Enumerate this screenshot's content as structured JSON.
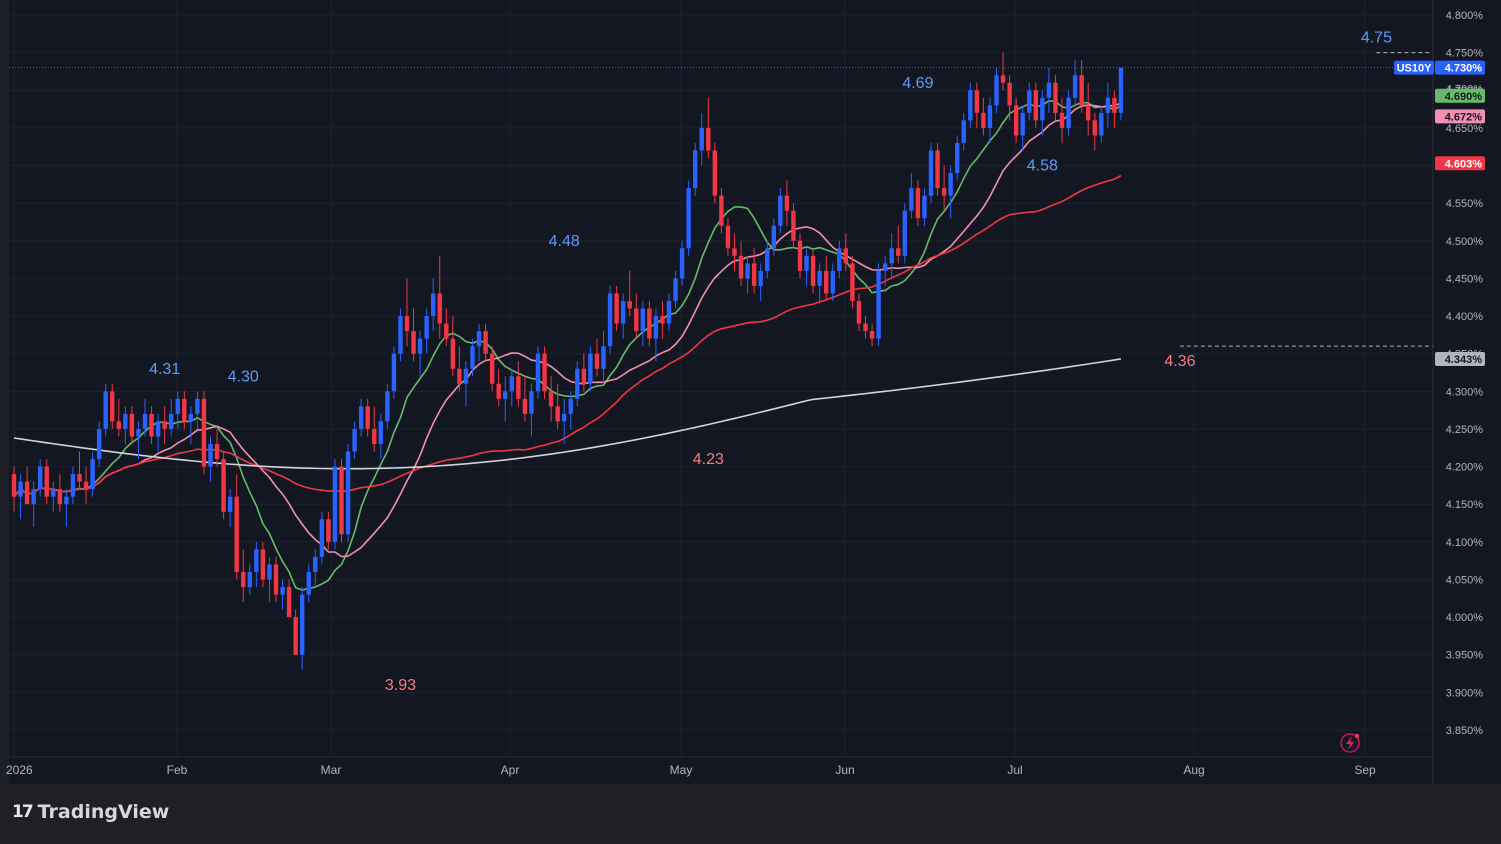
{
  "brand": {
    "logo_text": "17",
    "name": "TradingView"
  },
  "symbol": "US10Y",
  "colors": {
    "background": "#131722",
    "up": "#2962ff",
    "down": "#f23645",
    "ma_fast": "#66bb6a",
    "ma_mid": "#f48fb1",
    "ma_slow": "#f23645",
    "ma_long": "#d1d4dc"
  },
  "chart_data": {
    "type": "candlestick",
    "x_labels": [
      "2026",
      "Feb",
      "Mar",
      "Apr",
      "May",
      "Jun",
      "Jul",
      "Aug",
      "Sep"
    ],
    "y_tick_labels": [
      "4.800%",
      "4.750%",
      "4.700%",
      "4.650%",
      "4.600%",
      "4.550%",
      "4.500%",
      "4.450%",
      "4.400%",
      "4.350%",
      "4.300%",
      "4.250%",
      "4.200%",
      "4.150%",
      "4.100%",
      "4.050%",
      "4.000%",
      "3.950%",
      "3.900%",
      "3.850%"
    ],
    "y_ticks": [
      4.8,
      4.75,
      4.7,
      4.65,
      4.6,
      4.55,
      4.5,
      4.45,
      4.4,
      4.35,
      4.3,
      4.25,
      4.2,
      4.15,
      4.1,
      4.05,
      4.0,
      3.95,
      3.9,
      3.85
    ],
    "ylim": [
      3.83,
      4.82
    ],
    "last_price": {
      "value": 4.73,
      "label": "4.730%"
    },
    "price_badges": [
      {
        "series": "ma_fast",
        "value": 4.69,
        "label": "4.690%"
      },
      {
        "series": "ma_mid",
        "value": 4.672,
        "label": "4.672%"
      },
      {
        "series": "ma_slow",
        "value": 4.603,
        "label": "4.603%"
      },
      {
        "series": "ma_long",
        "value": 4.343,
        "label": "4.343%"
      }
    ],
    "hidden_badge_label": "4.700%",
    "extreme_labels": [
      {
        "label": "4.31",
        "value": 4.31,
        "kind": "high",
        "day": 23
      },
      {
        "label": "4.30",
        "value": 4.3,
        "kind": "high",
        "day": 35
      },
      {
        "label": "3.93",
        "value": 3.93,
        "kind": "low",
        "day": 59
      },
      {
        "label": "4.48",
        "value": 4.48,
        "kind": "high",
        "day": 84
      },
      {
        "label": "4.23",
        "value": 4.23,
        "kind": "low",
        "day": 106
      },
      {
        "label": "4.69",
        "value": 4.69,
        "kind": "high",
        "day": 138
      },
      {
        "label": "4.58",
        "value": 4.58,
        "kind": "high",
        "day": 157
      },
      {
        "label": "4.36",
        "value": 4.36,
        "kind": "low",
        "day": 178
      },
      {
        "label": "4.75",
        "value": 4.75,
        "kind": "high",
        "day": 208
      }
    ],
    "candles": [
      [
        4.19,
        4.2,
        4.14,
        4.16
      ],
      [
        4.16,
        4.19,
        4.13,
        4.18
      ],
      [
        4.18,
        4.2,
        4.15,
        4.15
      ],
      [
        4.15,
        4.18,
        4.12,
        4.17
      ],
      [
        4.17,
        4.21,
        4.16,
        4.2
      ],
      [
        4.2,
        4.21,
        4.15,
        4.16
      ],
      [
        4.16,
        4.18,
        4.14,
        4.17
      ],
      [
        4.17,
        4.19,
        4.14,
        4.15
      ],
      [
        4.15,
        4.17,
        4.12,
        4.16
      ],
      [
        4.16,
        4.2,
        4.15,
        4.19
      ],
      [
        4.19,
        4.22,
        4.17,
        4.18
      ],
      [
        4.18,
        4.2,
        4.15,
        4.17
      ],
      [
        4.17,
        4.22,
        4.16,
        4.21
      ],
      [
        4.21,
        4.26,
        4.2,
        4.25
      ],
      [
        4.25,
        4.31,
        4.24,
        4.3
      ],
      [
        4.3,
        4.31,
        4.25,
        4.26
      ],
      [
        4.26,
        4.29,
        4.24,
        4.25
      ],
      [
        4.25,
        4.28,
        4.23,
        4.27
      ],
      [
        4.27,
        4.28,
        4.23,
        4.24
      ],
      [
        4.24,
        4.26,
        4.21,
        4.25
      ],
      [
        4.25,
        4.29,
        4.24,
        4.27
      ],
      [
        4.27,
        4.28,
        4.23,
        4.24
      ],
      [
        4.24,
        4.27,
        4.22,
        4.26
      ],
      [
        4.26,
        4.28,
        4.23,
        4.25
      ],
      [
        4.25,
        4.29,
        4.24,
        4.27
      ],
      [
        4.27,
        4.3,
        4.25,
        4.29
      ],
      [
        4.29,
        4.3,
        4.25,
        4.26
      ],
      [
        4.26,
        4.28,
        4.23,
        4.27
      ],
      [
        4.27,
        4.3,
        4.25,
        4.29
      ],
      [
        4.29,
        4.3,
        4.19,
        4.2
      ],
      [
        4.2,
        4.24,
        4.18,
        4.23
      ],
      [
        4.23,
        4.25,
        4.2,
        4.21
      ],
      [
        4.21,
        4.22,
        4.13,
        4.14
      ],
      [
        4.14,
        4.17,
        4.12,
        4.16
      ],
      [
        4.16,
        4.19,
        4.05,
        4.06
      ],
      [
        4.06,
        4.09,
        4.02,
        4.04
      ],
      [
        4.04,
        4.07,
        4.03,
        4.06
      ],
      [
        4.06,
        4.1,
        4.04,
        4.09
      ],
      [
        4.09,
        4.1,
        4.04,
        4.05
      ],
      [
        4.05,
        4.08,
        4.02,
        4.07
      ],
      [
        4.07,
        4.08,
        4.02,
        4.03
      ],
      [
        4.03,
        4.05,
        4.01,
        4.04
      ],
      [
        4.04,
        4.05,
        4.0,
        4.0
      ],
      [
        4.0,
        4.01,
        3.95,
        3.95
      ],
      [
        3.95,
        4.04,
        3.93,
        4.03
      ],
      [
        4.03,
        4.07,
        4.02,
        4.06
      ],
      [
        4.06,
        4.09,
        4.04,
        4.08
      ],
      [
        4.08,
        4.14,
        4.07,
        4.13
      ],
      [
        4.13,
        4.14,
        4.09,
        4.1
      ],
      [
        4.1,
        4.21,
        4.09,
        4.2
      ],
      [
        4.2,
        4.21,
        4.1,
        4.11
      ],
      [
        4.11,
        4.23,
        4.1,
        4.22
      ],
      [
        4.22,
        4.26,
        4.21,
        4.25
      ],
      [
        4.25,
        4.29,
        4.24,
        4.28
      ],
      [
        4.28,
        4.29,
        4.24,
        4.25
      ],
      [
        4.25,
        4.28,
        4.22,
        4.23
      ],
      [
        4.23,
        4.27,
        4.21,
        4.26
      ],
      [
        4.26,
        4.31,
        4.25,
        4.3
      ],
      [
        4.3,
        4.36,
        4.29,
        4.35
      ],
      [
        4.35,
        4.41,
        4.34,
        4.4
      ],
      [
        4.4,
        4.45,
        4.36,
        4.38
      ],
      [
        4.38,
        4.41,
        4.34,
        4.35
      ],
      [
        4.35,
        4.38,
        4.32,
        4.37
      ],
      [
        4.37,
        4.41,
        4.35,
        4.4
      ],
      [
        4.4,
        4.45,
        4.38,
        4.43
      ],
      [
        4.43,
        4.48,
        4.37,
        4.39
      ],
      [
        4.39,
        4.41,
        4.36,
        4.37
      ],
      [
        4.37,
        4.4,
        4.32,
        4.33
      ],
      [
        4.33,
        4.36,
        4.3,
        4.31
      ],
      [
        4.31,
        4.34,
        4.28,
        4.33
      ],
      [
        4.33,
        4.37,
        4.32,
        4.36
      ],
      [
        4.36,
        4.39,
        4.34,
        4.38
      ],
      [
        4.38,
        4.39,
        4.34,
        4.35
      ],
      [
        4.35,
        4.36,
        4.3,
        4.31
      ],
      [
        4.31,
        4.33,
        4.28,
        4.29
      ],
      [
        4.29,
        4.32,
        4.26,
        4.3
      ],
      [
        4.3,
        4.33,
        4.28,
        4.32
      ],
      [
        4.32,
        4.34,
        4.28,
        4.29
      ],
      [
        4.29,
        4.32,
        4.26,
        4.27
      ],
      [
        4.27,
        4.31,
        4.24,
        4.3
      ],
      [
        4.3,
        4.36,
        4.29,
        4.35
      ],
      [
        4.35,
        4.36,
        4.29,
        4.3
      ],
      [
        4.3,
        4.32,
        4.26,
        4.28
      ],
      [
        4.28,
        4.31,
        4.25,
        4.26
      ],
      [
        4.26,
        4.29,
        4.23,
        4.27
      ],
      [
        4.27,
        4.3,
        4.25,
        4.29
      ],
      [
        4.29,
        4.34,
        4.28,
        4.33
      ],
      [
        4.33,
        4.35,
        4.3,
        4.31
      ],
      [
        4.31,
        4.36,
        4.3,
        4.35
      ],
      [
        4.35,
        4.37,
        4.32,
        4.33
      ],
      [
        4.33,
        4.38,
        4.31,
        4.36
      ],
      [
        4.36,
        4.44,
        4.35,
        4.43
      ],
      [
        4.43,
        4.44,
        4.38,
        4.39
      ],
      [
        4.39,
        4.43,
        4.37,
        4.42
      ],
      [
        4.42,
        4.46,
        4.4,
        4.41
      ],
      [
        4.41,
        4.43,
        4.37,
        4.38
      ],
      [
        4.38,
        4.42,
        4.36,
        4.41
      ],
      [
        4.41,
        4.42,
        4.36,
        4.37
      ],
      [
        4.37,
        4.41,
        4.34,
        4.4
      ],
      [
        4.4,
        4.42,
        4.37,
        4.39
      ],
      [
        4.39,
        4.43,
        4.38,
        4.42
      ],
      [
        4.42,
        4.46,
        4.41,
        4.45
      ],
      [
        4.45,
        4.5,
        4.44,
        4.49
      ],
      [
        4.49,
        4.58,
        4.48,
        4.57
      ],
      [
        4.57,
        4.63,
        4.56,
        4.62
      ],
      [
        4.62,
        4.67,
        4.6,
        4.65
      ],
      [
        4.65,
        4.69,
        4.61,
        4.62
      ],
      [
        4.62,
        4.63,
        4.55,
        4.56
      ],
      [
        4.56,
        4.57,
        4.51,
        4.52
      ],
      [
        4.52,
        4.53,
        4.48,
        4.49
      ],
      [
        4.49,
        4.51,
        4.46,
        4.48
      ],
      [
        4.48,
        4.5,
        4.44,
        4.45
      ],
      [
        4.45,
        4.48,
        4.43,
        4.47
      ],
      [
        4.47,
        4.49,
        4.43,
        4.44
      ],
      [
        4.44,
        4.47,
        4.42,
        4.46
      ],
      [
        4.46,
        4.5,
        4.45,
        4.49
      ],
      [
        4.49,
        4.53,
        4.48,
        4.52
      ],
      [
        4.52,
        4.57,
        4.51,
        4.56
      ],
      [
        4.56,
        4.58,
        4.52,
        4.54
      ],
      [
        4.54,
        4.55,
        4.49,
        4.5
      ],
      [
        4.5,
        4.51,
        4.45,
        4.46
      ],
      [
        4.46,
        4.49,
        4.44,
        4.48
      ],
      [
        4.48,
        4.49,
        4.43,
        4.44
      ],
      [
        4.44,
        4.47,
        4.42,
        4.46
      ],
      [
        4.46,
        4.48,
        4.42,
        4.43
      ],
      [
        4.43,
        4.47,
        4.42,
        4.46
      ],
      [
        4.46,
        4.5,
        4.45,
        4.49
      ],
      [
        4.49,
        4.51,
        4.46,
        4.47
      ],
      [
        4.47,
        4.48,
        4.41,
        4.42
      ],
      [
        4.42,
        4.43,
        4.38,
        4.39
      ],
      [
        4.39,
        4.4,
        4.37,
        4.38
      ],
      [
        4.38,
        4.39,
        4.36,
        4.37
      ],
      [
        4.37,
        4.47,
        4.36,
        4.46
      ],
      [
        4.46,
        4.48,
        4.44,
        4.47
      ],
      [
        4.47,
        4.51,
        4.45,
        4.49
      ],
      [
        4.49,
        4.52,
        4.47,
        4.48
      ],
      [
        4.48,
        4.55,
        4.47,
        4.54
      ],
      [
        4.54,
        4.59,
        4.53,
        4.57
      ],
      [
        4.57,
        4.58,
        4.52,
        4.53
      ],
      [
        4.53,
        4.57,
        4.52,
        4.56
      ],
      [
        4.56,
        4.63,
        4.55,
        4.62
      ],
      [
        4.62,
        4.63,
        4.56,
        4.57
      ],
      [
        4.57,
        4.6,
        4.54,
        4.56
      ],
      [
        4.56,
        4.6,
        4.53,
        4.59
      ],
      [
        4.59,
        4.64,
        4.58,
        4.63
      ],
      [
        4.63,
        4.67,
        4.62,
        4.66
      ],
      [
        4.66,
        4.71,
        4.65,
        4.7
      ],
      [
        4.7,
        4.71,
        4.65,
        4.67
      ],
      [
        4.67,
        4.69,
        4.64,
        4.65
      ],
      [
        4.65,
        4.69,
        4.63,
        4.68
      ],
      [
        4.68,
        4.73,
        4.67,
        4.72
      ],
      [
        4.72,
        4.75,
        4.7,
        4.71
      ],
      [
        4.71,
        4.72,
        4.66,
        4.68
      ],
      [
        4.68,
        4.69,
        4.63,
        4.64
      ],
      [
        4.64,
        4.68,
        4.62,
        4.67
      ],
      [
        4.67,
        4.71,
        4.66,
        4.7
      ],
      [
        4.7,
        4.71,
        4.65,
        4.66
      ],
      [
        4.66,
        4.7,
        4.64,
        4.69
      ],
      [
        4.69,
        4.73,
        4.67,
        4.71
      ],
      [
        4.71,
        4.72,
        4.66,
        4.67
      ],
      [
        4.67,
        4.69,
        4.63,
        4.65
      ],
      [
        4.65,
        4.7,
        4.64,
        4.69
      ],
      [
        4.69,
        4.74,
        4.68,
        4.72
      ],
      [
        4.72,
        4.74,
        4.67,
        4.68
      ],
      [
        4.68,
        4.71,
        4.64,
        4.66
      ],
      [
        4.66,
        4.67,
        4.62,
        4.64
      ],
      [
        4.64,
        4.68,
        4.63,
        4.67
      ],
      [
        4.67,
        4.71,
        4.65,
        4.69
      ],
      [
        4.69,
        4.7,
        4.65,
        4.67
      ],
      [
        4.67,
        4.73,
        4.66,
        4.73
      ]
    ],
    "ma_lines": [
      {
        "key": "ma_fast",
        "period": 10
      },
      {
        "key": "ma_mid",
        "period": 20
      },
      {
        "key": "ma_slow",
        "period": 50
      },
      {
        "key": "ma_long",
        "period": 200
      }
    ]
  }
}
